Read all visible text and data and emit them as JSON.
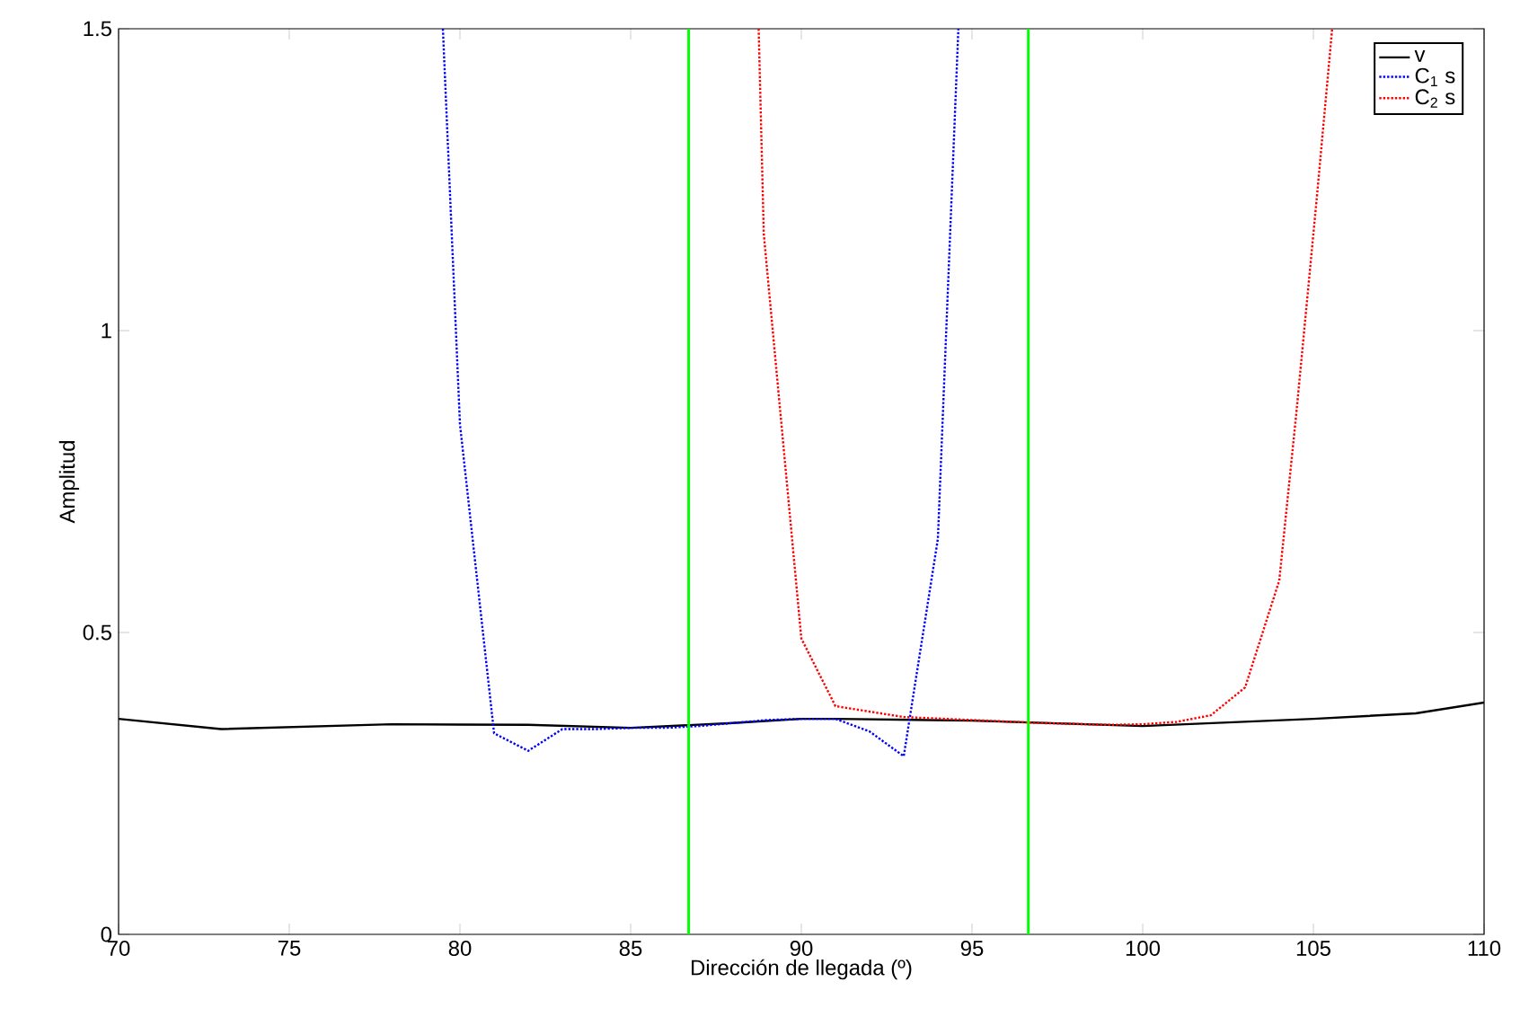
{
  "chart_data": {
    "type": "line",
    "xlabel": "Dirección de llegada (º)",
    "ylabel": "Amplitud",
    "xlim": [
      70,
      110
    ],
    "ylim": [
      0,
      1.5
    ],
    "xticks": [
      70,
      75,
      80,
      85,
      90,
      95,
      100,
      105,
      110
    ],
    "yticks": [
      0,
      {
        "value": 0.5,
        "label": "0.5"
      },
      1,
      {
        "value": 1.5,
        "label": "1.5"
      }
    ],
    "grid": false,
    "legend": "top right",
    "series": [
      {
        "name": "v",
        "color": "#000000",
        "line_style": "solid",
        "x": [
          70,
          73,
          78,
          82,
          85,
          88,
          90,
          91,
          95,
          100,
          105,
          108,
          110
        ],
        "values": [
          0.357,
          0.34,
          0.348,
          0.347,
          0.342,
          0.35,
          0.357,
          0.357,
          0.354,
          0.345,
          0.357,
          0.366,
          0.384
        ]
      },
      {
        "name": "C$_{1}$ s",
        "color": "#0000ff",
        "line_style": "dotted",
        "x": [
          79.5,
          80,
          81,
          82,
          83,
          84,
          85,
          86,
          87,
          88,
          89,
          90,
          91,
          92,
          93,
          94,
          94.6
        ],
        "values": [
          1.5,
          0.845,
          0.333,
          0.304,
          0.34,
          0.34,
          0.342,
          0.342,
          0.345,
          0.35,
          0.355,
          0.357,
          0.357,
          0.336,
          0.295,
          0.655,
          1.5
        ]
      },
      {
        "name": "C$_{2}$ s",
        "color": "#ff0000",
        "line_style": "dotted",
        "x": [
          88.75,
          88.9,
          90,
          91,
          93,
          95,
          97,
          99,
          100,
          101,
          102,
          103,
          104,
          104.5,
          105.1,
          105.55
        ],
        "values": [
          1.5,
          1.16,
          0.49,
          0.378,
          0.36,
          0.355,
          0.35,
          0.347,
          0.348,
          0.352,
          0.363,
          0.409,
          0.586,
          0.863,
          1.22,
          1.5
        ]
      }
    ],
    "ref_lines": [
      {
        "axis": "x",
        "value": 86.7,
        "color": "#00ff00"
      },
      {
        "axis": "x",
        "value": 96.65,
        "color": "#00ff00"
      }
    ]
  }
}
